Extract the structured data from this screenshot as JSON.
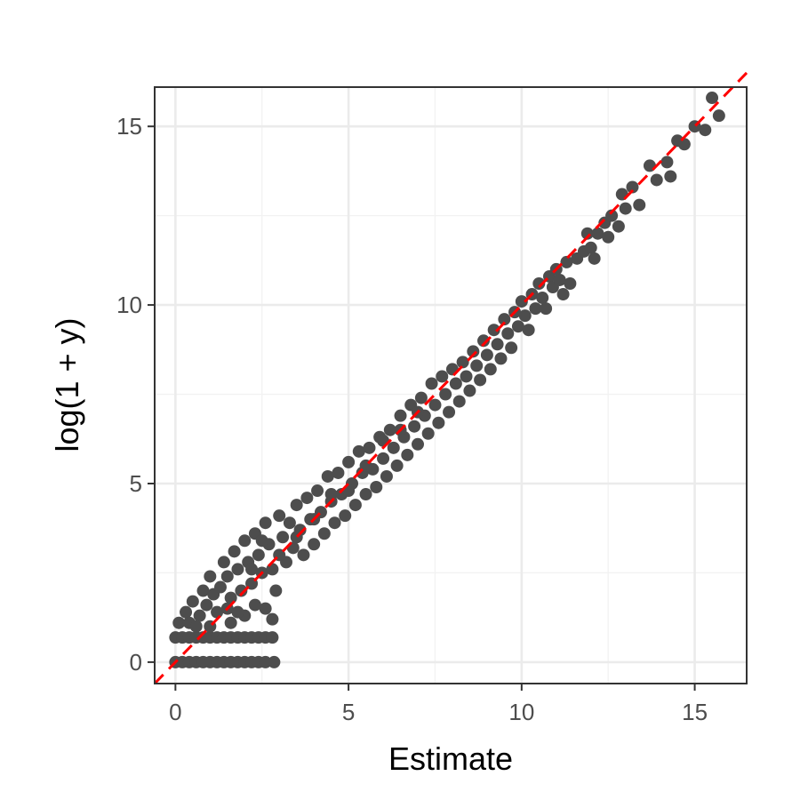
{
  "chart_data": {
    "type": "scatter",
    "title": "",
    "xlabel": "Estimate",
    "ylabel": "log(1 + y)",
    "xlim": [
      -0.6,
      16.5
    ],
    "ylim": [
      -0.6,
      16.1
    ],
    "x_ticks": [
      0,
      5,
      10,
      15
    ],
    "y_ticks": [
      0,
      5,
      10,
      15
    ],
    "x_tick_labels": [
      "0",
      "5",
      "10",
      "15"
    ],
    "y_tick_labels": [
      "0",
      "5",
      "10",
      "15"
    ],
    "grid": true,
    "legend": "none",
    "point_color": "#4d4d4d",
    "reference_line": {
      "slope": 1,
      "intercept": 0,
      "style": "dashed",
      "color": "#ff0000"
    },
    "points": [
      [
        0.0,
        0.0
      ],
      [
        0.2,
        0.0
      ],
      [
        0.4,
        0.0
      ],
      [
        0.6,
        0.0
      ],
      [
        0.8,
        0.0
      ],
      [
        1.0,
        0.0
      ],
      [
        1.2,
        0.0
      ],
      [
        1.4,
        0.0
      ],
      [
        1.6,
        0.0
      ],
      [
        1.8,
        0.0
      ],
      [
        2.0,
        0.0
      ],
      [
        2.2,
        0.0
      ],
      [
        2.4,
        0.0
      ],
      [
        2.6,
        0.0
      ],
      [
        2.85,
        0.0
      ],
      [
        0.0,
        0.69
      ],
      [
        0.2,
        0.69
      ],
      [
        0.4,
        0.69
      ],
      [
        0.6,
        0.69
      ],
      [
        0.8,
        0.69
      ],
      [
        1.0,
        0.69
      ],
      [
        1.2,
        0.69
      ],
      [
        1.4,
        0.69
      ],
      [
        1.6,
        0.69
      ],
      [
        1.8,
        0.69
      ],
      [
        2.0,
        0.69
      ],
      [
        2.2,
        0.69
      ],
      [
        2.4,
        0.69
      ],
      [
        2.6,
        0.69
      ],
      [
        2.8,
        0.69
      ],
      [
        0.1,
        1.1
      ],
      [
        0.3,
        1.4
      ],
      [
        0.5,
        1.7
      ],
      [
        0.4,
        1.1
      ],
      [
        0.7,
        1.3
      ],
      [
        0.8,
        2.0
      ],
      [
        0.9,
        1.6
      ],
      [
        1.0,
        2.4
      ],
      [
        1.1,
        1.9
      ],
      [
        1.2,
        1.4
      ],
      [
        1.3,
        2.1
      ],
      [
        1.4,
        2.8
      ],
      [
        1.5,
        2.4
      ],
      [
        1.6,
        1.8
      ],
      [
        1.7,
        3.1
      ],
      [
        1.8,
        2.6
      ],
      [
        1.9,
        2.0
      ],
      [
        2.0,
        3.4
      ],
      [
        2.1,
        2.8
      ],
      [
        2.2,
        2.2
      ],
      [
        2.3,
        3.6
      ],
      [
        2.4,
        3.0
      ],
      [
        2.5,
        2.5
      ],
      [
        2.6,
        3.9
      ],
      [
        2.7,
        3.3
      ],
      [
        2.8,
        2.6
      ],
      [
        2.9,
        2.0
      ],
      [
        2.6,
        1.5
      ],
      [
        2.8,
        1.2
      ],
      [
        2.3,
        1.6
      ],
      [
        2.0,
        1.3
      ],
      [
        1.6,
        1.1
      ],
      [
        3.0,
        4.1
      ],
      [
        3.1,
        3.5
      ],
      [
        3.2,
        2.8
      ],
      [
        3.3,
        3.9
      ],
      [
        3.4,
        3.2
      ],
      [
        3.5,
        4.4
      ],
      [
        3.6,
        3.7
      ],
      [
        3.7,
        3.0
      ],
      [
        3.8,
        4.6
      ],
      [
        3.9,
        4.0
      ],
      [
        4.0,
        3.3
      ],
      [
        4.1,
        4.8
      ],
      [
        4.2,
        4.2
      ],
      [
        4.3,
        3.6
      ],
      [
        4.4,
        5.2
      ],
      [
        4.5,
        4.5
      ],
      [
        4.6,
        3.9
      ],
      [
        4.7,
        5.3
      ],
      [
        4.8,
        4.7
      ],
      [
        4.9,
        4.1
      ],
      [
        5.0,
        5.6
      ],
      [
        5.1,
        5.0
      ],
      [
        5.2,
        4.4
      ],
      [
        5.3,
        5.9
      ],
      [
        5.4,
        5.3
      ],
      [
        5.5,
        4.7
      ],
      [
        5.6,
        6.0
      ],
      [
        5.7,
        5.4
      ],
      [
        5.8,
        4.9
      ],
      [
        5.9,
        6.3
      ],
      [
        6.0,
        5.7
      ],
      [
        6.1,
        5.2
      ],
      [
        6.2,
        6.5
      ],
      [
        6.3,
        6.0
      ],
      [
        6.4,
        5.5
      ],
      [
        6.5,
        6.9
      ],
      [
        6.6,
        6.3
      ],
      [
        6.7,
        5.8
      ],
      [
        6.8,
        7.2
      ],
      [
        6.9,
        6.6
      ],
      [
        7.0,
        6.1
      ],
      [
        7.1,
        7.4
      ],
      [
        7.2,
        6.9
      ],
      [
        7.3,
        6.4
      ],
      [
        7.4,
        7.8
      ],
      [
        7.5,
        7.2
      ],
      [
        7.6,
        6.7
      ],
      [
        7.7,
        8.0
      ],
      [
        7.8,
        7.5
      ],
      [
        7.9,
        7.0
      ],
      [
        8.0,
        8.2
      ],
      [
        8.1,
        7.8
      ],
      [
        8.2,
        7.3
      ],
      [
        8.3,
        8.4
      ],
      [
        8.4,
        8.0
      ],
      [
        8.5,
        7.6
      ],
      [
        8.6,
        8.7
      ],
      [
        8.7,
        8.3
      ],
      [
        8.8,
        7.9
      ],
      [
        8.9,
        9.0
      ],
      [
        9.0,
        8.6
      ],
      [
        9.1,
        8.2
      ],
      [
        9.2,
        9.3
      ],
      [
        9.3,
        8.9
      ],
      [
        9.4,
        8.5
      ],
      [
        9.5,
        9.6
      ],
      [
        9.6,
        9.2
      ],
      [
        9.7,
        8.8
      ],
      [
        9.8,
        9.8
      ],
      [
        9.9,
        9.4
      ],
      [
        10.0,
        10.1
      ],
      [
        10.1,
        9.7
      ],
      [
        10.2,
        9.3
      ],
      [
        10.3,
        10.3
      ],
      [
        10.4,
        9.9
      ],
      [
        10.5,
        10.6
      ],
      [
        10.6,
        10.2
      ],
      [
        10.7,
        9.9
      ],
      [
        10.8,
        10.8
      ],
      [
        10.9,
        10.5
      ],
      [
        11.0,
        11.0
      ],
      [
        11.1,
        10.7
      ],
      [
        11.2,
        10.3
      ],
      [
        11.3,
        11.2
      ],
      [
        11.4,
        10.6
      ],
      [
        11.6,
        11.3
      ],
      [
        11.8,
        11.5
      ],
      [
        11.9,
        12.0
      ],
      [
        12.0,
        11.6
      ],
      [
        12.1,
        11.3
      ],
      [
        12.2,
        12.0
      ],
      [
        12.4,
        12.3
      ],
      [
        12.5,
        11.9
      ],
      [
        12.6,
        12.5
      ],
      [
        12.8,
        12.2
      ],
      [
        12.9,
        13.1
      ],
      [
        13.0,
        12.7
      ],
      [
        13.2,
        13.3
      ],
      [
        13.4,
        12.8
      ],
      [
        13.7,
        13.9
      ],
      [
        13.9,
        13.5
      ],
      [
        14.2,
        14.0
      ],
      [
        14.3,
        13.6
      ],
      [
        14.5,
        14.6
      ],
      [
        14.7,
        14.5
      ],
      [
        15.0,
        15.0
      ],
      [
        15.3,
        14.9
      ],
      [
        15.5,
        15.8
      ],
      [
        15.7,
        15.3
      ],
      [
        2.5,
        3.4
      ],
      [
        3.0,
        3.0
      ],
      [
        3.5,
        3.5
      ],
      [
        4.0,
        4.0
      ],
      [
        4.5,
        4.7
      ],
      [
        5.0,
        4.8
      ],
      [
        5.5,
        5.5
      ],
      [
        6.0,
        6.2
      ],
      [
        6.5,
        6.5
      ],
      [
        7.0,
        7.0
      ],
      [
        1.5,
        1.5
      ],
      [
        1.8,
        1.4
      ],
      [
        2.2,
        2.6
      ],
      [
        0.6,
        1.0
      ],
      [
        1.0,
        1.0
      ]
    ]
  }
}
